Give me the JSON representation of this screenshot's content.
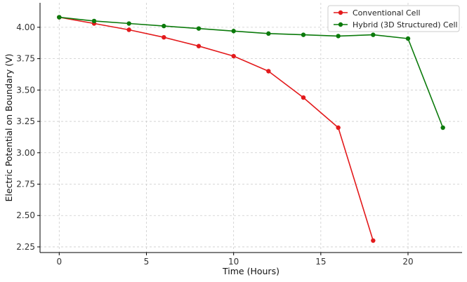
{
  "chart_data": {
    "type": "line",
    "title": "",
    "xlabel": "Time (Hours)",
    "ylabel": "Electric Potential on Boundary (V)",
    "xlim": [
      -1.1,
      23.1
    ],
    "ylim": [
      2.205,
      4.195
    ],
    "xticks": [
      0,
      5,
      10,
      15,
      20
    ],
    "yticks": [
      2.25,
      2.5,
      2.75,
      3.0,
      3.25,
      3.5,
      3.75,
      4.0
    ],
    "xtick_labels": [
      "0",
      "5",
      "10",
      "15",
      "20"
    ],
    "ytick_labels": [
      "2.25",
      "2.50",
      "2.75",
      "3.00",
      "3.25",
      "3.50",
      "3.75",
      "4.00"
    ],
    "grid": true,
    "legend_position": "top-right",
    "series": [
      {
        "name": "Conventional Cell",
        "color": "#e31a1c",
        "x": [
          0,
          2,
          4,
          6,
          8,
          10,
          12,
          14,
          16,
          18
        ],
        "y": [
          4.08,
          4.03,
          3.98,
          3.92,
          3.85,
          3.77,
          3.65,
          3.44,
          3.2,
          2.3
        ]
      },
      {
        "name": "Hybrid (3D Structured) Cell",
        "color": "#0b7a0b",
        "x": [
          0,
          2,
          4,
          6,
          8,
          10,
          12,
          14,
          16,
          18,
          20,
          22
        ],
        "y": [
          4.08,
          4.05,
          4.03,
          4.01,
          3.99,
          3.97,
          3.95,
          3.94,
          3.93,
          3.94,
          3.91,
          3.2
        ]
      }
    ]
  }
}
